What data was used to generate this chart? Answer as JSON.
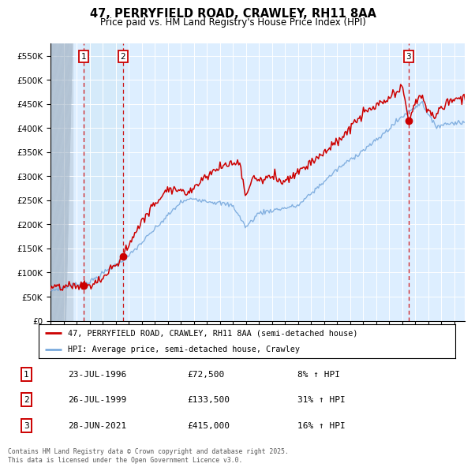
{
  "title": "47, PERRYFIELD ROAD, CRAWLEY, RH11 8AA",
  "subtitle": "Price paid vs. HM Land Registry's House Price Index (HPI)",
  "legend_label_red": "47, PERRYFIELD ROAD, CRAWLEY, RH11 8AA (semi-detached house)",
  "legend_label_blue": "HPI: Average price, semi-detached house, Crawley",
  "transactions": [
    {
      "num": 1,
      "date": "23-JUL-1996",
      "price": 72500,
      "pct": "8% ↑ HPI",
      "year": 1996.55
    },
    {
      "num": 2,
      "date": "26-JUL-1999",
      "price": 133500,
      "pct": "31% ↑ HPI",
      "year": 1999.55
    },
    {
      "num": 3,
      "date": "28-JUN-2021",
      "price": 415000,
      "pct": "16% ↑ HPI",
      "year": 2021.49
    }
  ],
  "footnote": "Contains HM Land Registry data © Crown copyright and database right 2025.\nThis data is licensed under the Open Government Licence v3.0.",
  "red_color": "#cc0000",
  "blue_color": "#7aaadd",
  "background_chart": "#ddeeff",
  "background_hatch": "#c8d8e8",
  "background_fig": "#ffffff",
  "ylim_max": 575000,
  "xlim_start": 1994.0,
  "xlim_end": 2025.8,
  "ytick_interval": 50000,
  "row_data": [
    [
      "1",
      "23-JUL-1996",
      "£72,500",
      "8% ↑ HPI"
    ],
    [
      "2",
      "26-JUL-1999",
      "£133,500",
      "31% ↑ HPI"
    ],
    [
      "3",
      "28-JUN-2021",
      "£415,000",
      "16% ↑ HPI"
    ]
  ]
}
